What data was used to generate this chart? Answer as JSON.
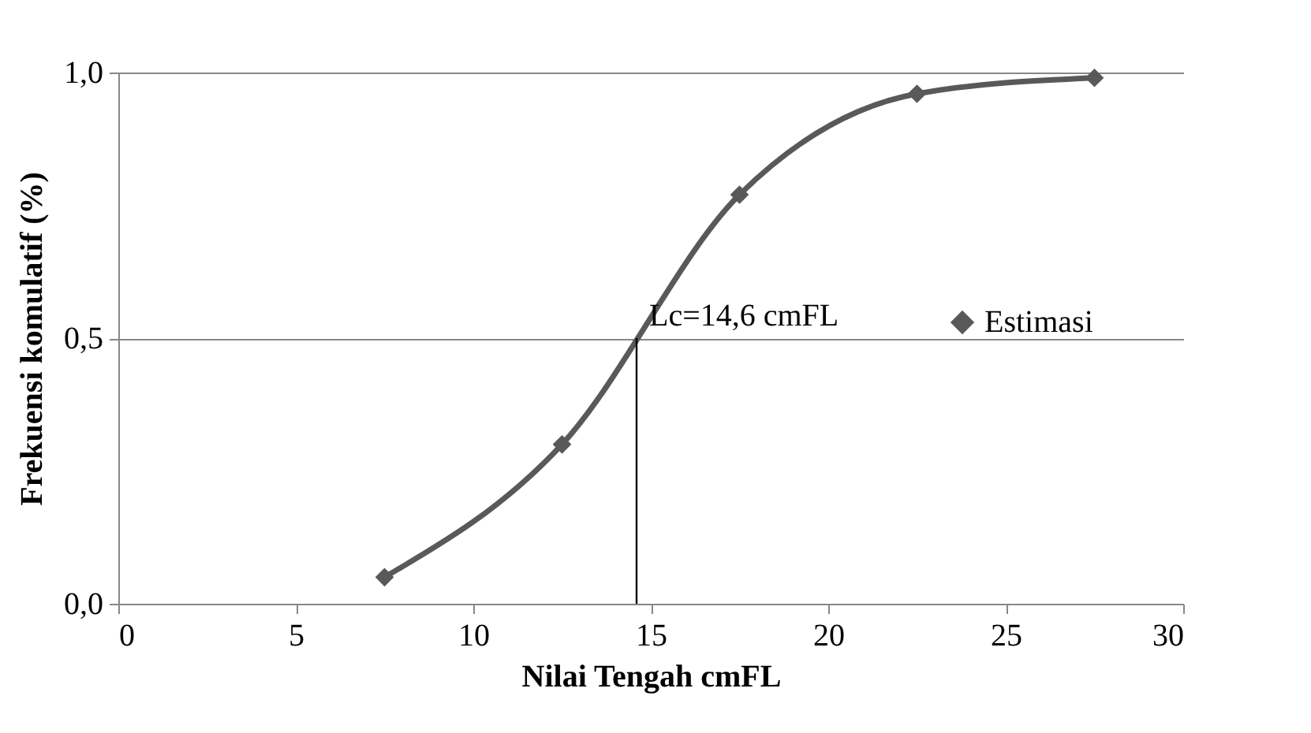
{
  "chart_data": {
    "type": "line",
    "xlabel": "Nilai Tengah cmFL",
    "ylabel": "Frekuensi komulatif (%)",
    "x": [
      7.5,
      12.5,
      17.5,
      22.5,
      27.5
    ],
    "series": [
      {
        "name": "Estimasi",
        "color": "#595959",
        "values": [
          0.05,
          0.3,
          0.77,
          0.96,
          0.99
        ]
      }
    ],
    "xlim": [
      0,
      30
    ],
    "xticks": [
      0,
      5,
      10,
      15,
      20,
      25,
      30
    ],
    "ylim": [
      0,
      1
    ],
    "yticks": [
      {
        "value": 0,
        "label": "0,0"
      },
      {
        "value": 0.5,
        "label": "0,5"
      },
      {
        "value": 1,
        "label": "1,0"
      }
    ],
    "annotations": [
      {
        "text": "Lc=14,6 cmFL",
        "x": 14.6,
        "y": 0.5
      }
    ],
    "grid": "y",
    "legend": "right",
    "marker": "diamond",
    "line_style": "solid"
  }
}
